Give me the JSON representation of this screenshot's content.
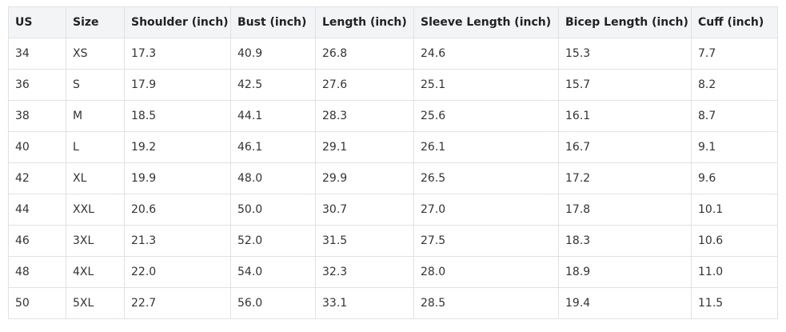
{
  "table": {
    "header": [
      "US",
      "Size",
      "Shoulder (inch)",
      "Bust (inch)",
      "Length (inch)",
      "Sleeve Length (inch)",
      "Bicep Length (inch)",
      "Cuff (inch)"
    ],
    "rows": [
      [
        "34",
        "XS",
        "17.3",
        "40.9",
        "26.8",
        "24.6",
        "15.3",
        "7.7"
      ],
      [
        "36",
        "S",
        "17.9",
        "42.5",
        "27.6",
        "25.1",
        "15.7",
        "8.2"
      ],
      [
        "38",
        "M",
        "18.5",
        "44.1",
        "28.3",
        "25.6",
        "16.1",
        "8.7"
      ],
      [
        "40",
        "L",
        "19.2",
        "46.1",
        "29.1",
        "26.1",
        "16.7",
        "9.1"
      ],
      [
        "42",
        "XL",
        "19.9",
        "48.0",
        "29.9",
        "26.5",
        "17.2",
        "9.6"
      ],
      [
        "44",
        "XXL",
        "20.6",
        "50.0",
        "30.7",
        "27.0",
        "17.8",
        "10.1"
      ],
      [
        "46",
        "3XL",
        "21.3",
        "52.0",
        "31.5",
        "27.5",
        "18.3",
        "10.6"
      ],
      [
        "48",
        "4XL",
        "22.0",
        "54.0",
        "32.3",
        "28.0",
        "18.9",
        "11.0"
      ],
      [
        "50",
        "5XL",
        "22.7",
        "56.0",
        "33.1",
        "28.5",
        "19.4",
        "11.5"
      ]
    ]
  }
}
